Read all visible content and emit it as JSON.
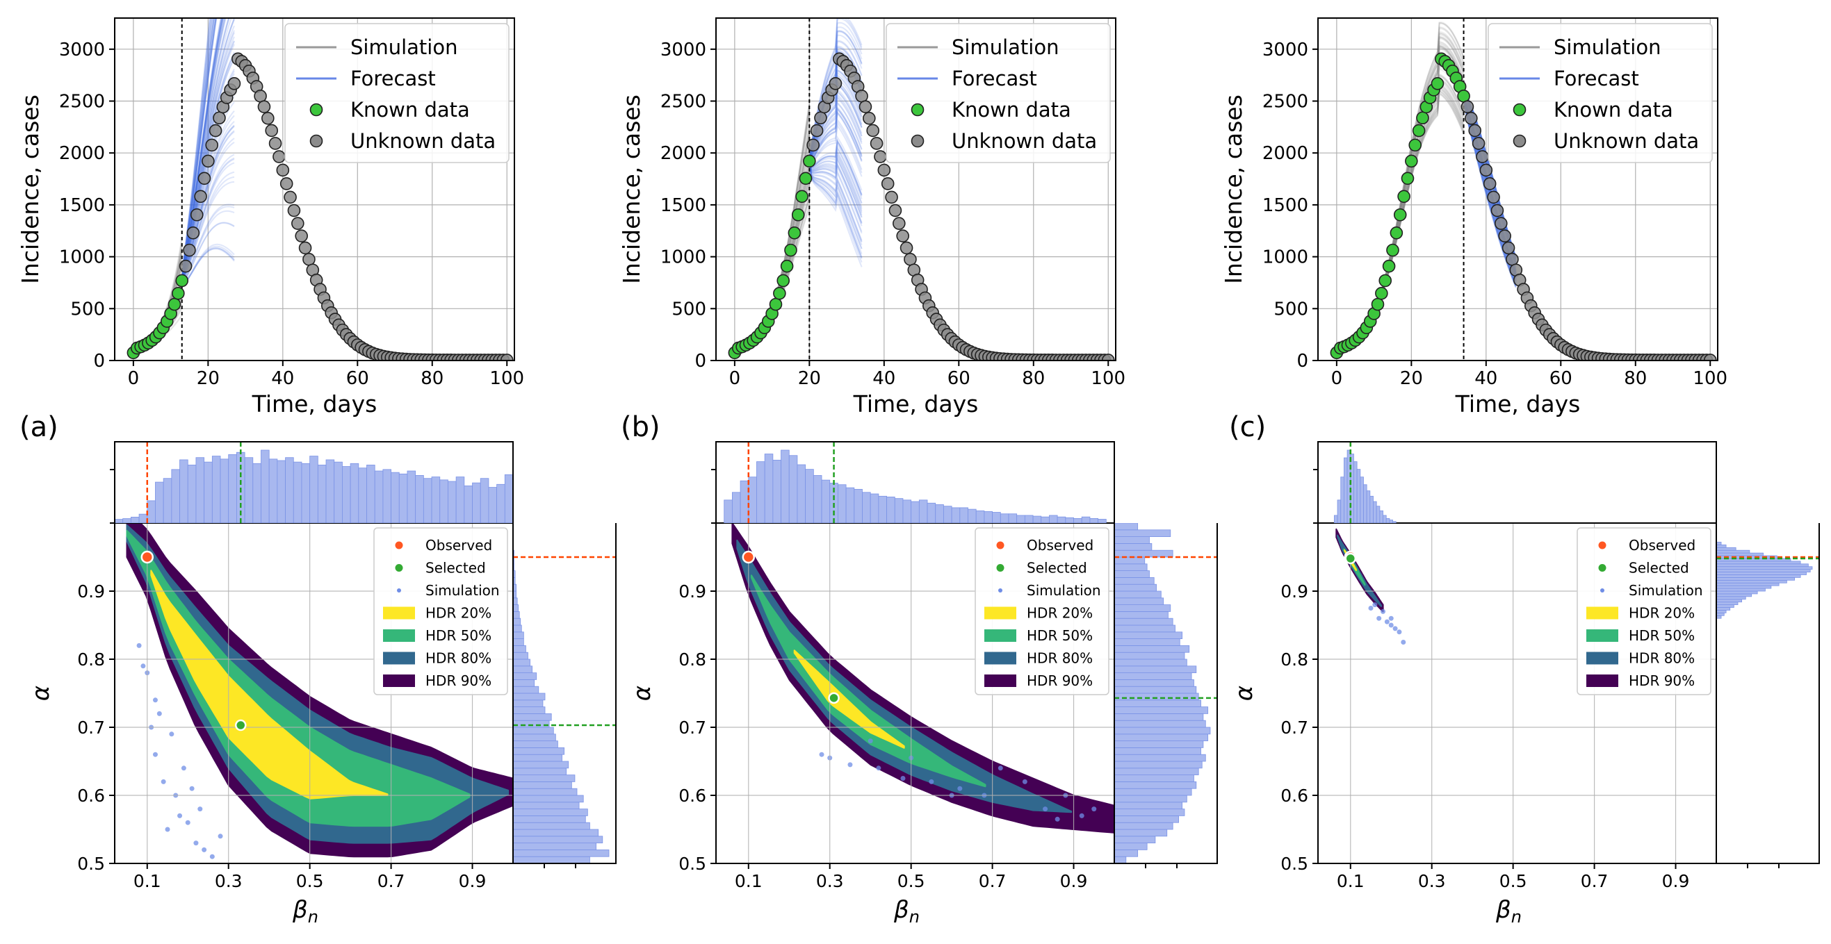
{
  "figure": {
    "panel_labels": [
      "(a)",
      "(b)",
      "(c)"
    ]
  },
  "chart_data": [
    {
      "panel": "(a)",
      "type": "line",
      "xlabel": "Time, days",
      "ylabel": "Incidence, cases",
      "xlim": [
        -5,
        102
      ],
      "ylim": [
        0,
        3300
      ],
      "xticks": [
        0,
        20,
        40,
        60,
        80,
        100
      ],
      "yticks": [
        0,
        500,
        1000,
        1500,
        2000,
        2500,
        3000
      ],
      "grid": true,
      "legend_position": "top-right",
      "legend": [
        "Simulation",
        "Forecast",
        "Known data",
        "Unknown data"
      ],
      "split_day": 13,
      "forecast_end_day": 27,
      "forecast_band": {
        "lo_factor": 0.35,
        "hi_factor": 1.9
      },
      "simulation_band": {
        "lo_factor": 0.55,
        "hi_factor": 1.55
      },
      "colors": {
        "simulation": "#808080",
        "forecast": "#4169e1",
        "known": "#3cc63c",
        "unknown": "#8c8c8c"
      }
    },
    {
      "panel": "(b)",
      "type": "line",
      "xlabel": "Time, days",
      "ylabel": "Incidence, cases",
      "xlim": [
        -5,
        102
      ],
      "ylim": [
        0,
        3300
      ],
      "xticks": [
        0,
        20,
        40,
        60,
        80,
        100
      ],
      "yticks": [
        0,
        500,
        1000,
        1500,
        2000,
        2500,
        3000
      ],
      "grid": true,
      "legend_position": "top-right",
      "legend": [
        "Simulation",
        "Forecast",
        "Known data",
        "Unknown data"
      ],
      "split_day": 20,
      "forecast_end_day": 34,
      "forecast_band": {
        "lo_factor": 0.35,
        "hi_factor": 1.2
      },
      "simulation_band": {
        "lo_factor": 0.75,
        "hi_factor": 1.3
      },
      "colors": {
        "simulation": "#808080",
        "forecast": "#4169e1",
        "known": "#3cc63c",
        "unknown": "#8c8c8c"
      }
    },
    {
      "panel": "(c)",
      "type": "line",
      "xlabel": "Time, days",
      "ylabel": "Incidence, cases",
      "xlim": [
        -5,
        102
      ],
      "ylim": [
        0,
        3300
      ],
      "xticks": [
        0,
        20,
        40,
        60,
        80,
        100
      ],
      "yticks": [
        0,
        500,
        1000,
        1500,
        2000,
        2500,
        3000
      ],
      "grid": true,
      "legend_position": "top-right",
      "legend": [
        "Simulation",
        "Forecast",
        "Known data",
        "Unknown data"
      ],
      "split_day": 34,
      "forecast_end_day": 48,
      "forecast_band": {
        "lo_factor": 0.8,
        "hi_factor": 1.15
      },
      "simulation_band": {
        "lo_factor": 0.85,
        "hi_factor": 1.15
      },
      "colors": {
        "simulation": "#808080",
        "forecast": "#4169e1",
        "known": "#3cc63c",
        "unknown": "#8c8c8c"
      }
    },
    {
      "panel": "(a)",
      "type": "heatmap",
      "xlabel": "βn",
      "ylabel": "α",
      "xlim": [
        0.02,
        1.0
      ],
      "ylim": [
        0.5,
        1.0
      ],
      "xticks": [
        0.1,
        0.3,
        0.5,
        0.7,
        0.9
      ],
      "yticks": [
        0.5,
        0.6,
        0.7,
        0.8,
        0.9
      ],
      "grid": true,
      "legend_position": "top-right",
      "legend": [
        "Observed",
        "Selected",
        "Simulation",
        "HDR 20%",
        "HDR 50%",
        "HDR 80%",
        "HDR 90%"
      ],
      "observed": [
        0.1,
        0.95
      ],
      "selected": [
        0.33,
        0.703
      ],
      "hdr_centerline": [
        [
          0.05,
          0.985
        ],
        [
          0.1,
          0.94
        ],
        [
          0.15,
          0.87
        ],
        [
          0.22,
          0.8
        ],
        [
          0.3,
          0.73
        ],
        [
          0.4,
          0.67
        ],
        [
          0.5,
          0.63
        ],
        [
          0.6,
          0.61
        ],
        [
          0.7,
          0.6
        ],
        [
          0.8,
          0.595
        ],
        [
          0.9,
          0.6
        ],
        [
          1.0,
          0.605
        ]
      ],
      "hdr_half_widths": [
        [
          0.035,
          0.012,
          0.004,
          0.0
        ],
        [
          0.05,
          0.03,
          0.018,
          0.0
        ],
        [
          0.075,
          0.055,
          0.04,
          0.018
        ],
        [
          0.1,
          0.075,
          0.055,
          0.035
        ],
        [
          0.115,
          0.09,
          0.07,
          0.045
        ],
        [
          0.12,
          0.1,
          0.075,
          0.045
        ],
        [
          0.115,
          0.095,
          0.07,
          0.035
        ],
        [
          0.1,
          0.08,
          0.055,
          0.01
        ],
        [
          0.09,
          0.07,
          0.045,
          0.0
        ],
        [
          0.075,
          0.06,
          0.03,
          0.0
        ],
        [
          0.04,
          0.025,
          0.0,
          0.0
        ],
        [
          0.02,
          0.0,
          0.0,
          0.0
        ]
      ],
      "simulation_points": [
        [
          0.08,
          0.82
        ],
        [
          0.09,
          0.79
        ],
        [
          0.1,
          0.78
        ],
        [
          0.11,
          0.7
        ],
        [
          0.12,
          0.66
        ],
        [
          0.13,
          0.72
        ],
        [
          0.14,
          0.62
        ],
        [
          0.16,
          0.69
        ],
        [
          0.17,
          0.6
        ],
        [
          0.18,
          0.57
        ],
        [
          0.15,
          0.55
        ],
        [
          0.2,
          0.56
        ],
        [
          0.22,
          0.53
        ],
        [
          0.24,
          0.52
        ],
        [
          0.26,
          0.51
        ],
        [
          0.28,
          0.54
        ],
        [
          0.19,
          0.64
        ],
        [
          0.21,
          0.61
        ],
        [
          0.12,
          0.74
        ],
        [
          0.23,
          0.58
        ]
      ],
      "marginal_top": {
        "bin_start": 0.02,
        "bin_width": 0.02,
        "counts": [
          0.05,
          0.06,
          0.08,
          0.12,
          0.3,
          0.55,
          0.6,
          0.72,
          0.85,
          0.78,
          0.88,
          0.82,
          0.9,
          0.86,
          0.92,
          0.95,
          0.88,
          0.8,
          0.98,
          0.86,
          0.84,
          0.88,
          0.82,
          0.8,
          0.9,
          0.78,
          0.85,
          0.82,
          0.76,
          0.8,
          0.74,
          0.78,
          0.7,
          0.72,
          0.68,
          0.66,
          0.7,
          0.64,
          0.6,
          0.62,
          0.58,
          0.56,
          0.62,
          0.5,
          0.54,
          0.6,
          0.48,
          0.52,
          0.65
        ]
      },
      "marginal_right": {
        "bin_start": 0.5,
        "bin_width": 0.01,
        "counts": [
          0.72,
          0.9,
          0.78,
          0.84,
          0.8,
          0.72,
          0.68,
          0.7,
          0.62,
          0.66,
          0.6,
          0.55,
          0.58,
          0.5,
          0.52,
          0.46,
          0.48,
          0.42,
          0.4,
          0.38,
          0.34,
          0.36,
          0.3,
          0.28,
          0.3,
          0.24,
          0.2,
          0.22,
          0.18,
          0.16,
          0.14,
          0.12,
          0.1,
          0.1,
          0.08,
          0.07,
          0.06,
          0.05,
          0.04,
          0.03,
          0.03,
          0.02,
          0.02,
          0.01,
          0.01,
          0.01,
          0.0,
          0.0,
          0.0,
          0.0
        ]
      }
    },
    {
      "panel": "(b)",
      "type": "heatmap",
      "xlabel": "βn",
      "ylabel": "α",
      "xlim": [
        0.02,
        1.0
      ],
      "ylim": [
        0.5,
        1.0
      ],
      "xticks": [
        0.1,
        0.3,
        0.5,
        0.7,
        0.9
      ],
      "yticks": [
        0.5,
        0.6,
        0.7,
        0.8,
        0.9
      ],
      "grid": true,
      "legend_position": "top-right",
      "legend": [
        "Observed",
        "Selected",
        "Simulation",
        "HDR 20%",
        "HDR 50%",
        "HDR 80%",
        "HDR 90%"
      ],
      "observed": [
        0.1,
        0.95
      ],
      "selected": [
        0.31,
        0.743
      ],
      "hdr_centerline": [
        [
          0.06,
          0.985
        ],
        [
          0.1,
          0.93
        ],
        [
          0.15,
          0.87
        ],
        [
          0.2,
          0.82
        ],
        [
          0.3,
          0.75
        ],
        [
          0.4,
          0.7
        ],
        [
          0.5,
          0.665
        ],
        [
          0.6,
          0.635
        ],
        [
          0.7,
          0.61
        ],
        [
          0.8,
          0.59
        ],
        [
          0.9,
          0.575
        ],
        [
          1.0,
          0.565
        ]
      ],
      "hdr_half_widths": [
        [
          0.015,
          0.0,
          0.0,
          0.0
        ],
        [
          0.035,
          0.02,
          0.0,
          0.0
        ],
        [
          0.045,
          0.03,
          0.012,
          0.0
        ],
        [
          0.05,
          0.035,
          0.02,
          0.0
        ],
        [
          0.055,
          0.04,
          0.028,
          0.015
        ],
        [
          0.055,
          0.04,
          0.025,
          0.008
        ],
        [
          0.05,
          0.035,
          0.018,
          0.0
        ],
        [
          0.045,
          0.028,
          0.008,
          0.0
        ],
        [
          0.04,
          0.02,
          0.0,
          0.0
        ],
        [
          0.035,
          0.012,
          0.0,
          0.0
        ],
        [
          0.025,
          0.0,
          0.0,
          0.0
        ],
        [
          0.02,
          0.0,
          0.0,
          0.0
        ]
      ],
      "simulation_points": [
        [
          0.28,
          0.66
        ],
        [
          0.3,
          0.655
        ],
        [
          0.35,
          0.645
        ],
        [
          0.42,
          0.64
        ],
        [
          0.48,
          0.625
        ],
        [
          0.55,
          0.62
        ],
        [
          0.62,
          0.61
        ],
        [
          0.68,
          0.6
        ],
        [
          0.72,
          0.64
        ],
        [
          0.78,
          0.62
        ],
        [
          0.83,
          0.58
        ],
        [
          0.88,
          0.6
        ],
        [
          0.92,
          0.57
        ],
        [
          0.95,
          0.58
        ],
        [
          0.86,
          0.565
        ],
        [
          0.4,
          0.68
        ],
        [
          0.5,
          0.655
        ],
        [
          0.6,
          0.6
        ]
      ],
      "marginal_top": {
        "bin_start": 0.04,
        "bin_width": 0.02,
        "counts": [
          0.3,
          0.4,
          0.55,
          0.6,
          0.8,
          0.9,
          0.82,
          0.95,
          0.88,
          0.76,
          0.7,
          0.62,
          0.56,
          0.52,
          0.5,
          0.46,
          0.44,
          0.4,
          0.38,
          0.35,
          0.34,
          0.32,
          0.3,
          0.28,
          0.3,
          0.26,
          0.24,
          0.22,
          0.2,
          0.2,
          0.18,
          0.16,
          0.15,
          0.14,
          0.12,
          0.12,
          0.1,
          0.1,
          0.09,
          0.08,
          0.1,
          0.08,
          0.07,
          0.06,
          0.08,
          0.06,
          0.05
        ]
      },
      "marginal_right": {
        "bin_start": 0.5,
        "bin_width": 0.01,
        "counts": [
          0.1,
          0.2,
          0.28,
          0.35,
          0.45,
          0.5,
          0.55,
          0.6,
          0.58,
          0.62,
          0.66,
          0.7,
          0.68,
          0.72,
          0.75,
          0.78,
          0.74,
          0.76,
          0.8,
          0.82,
          0.78,
          0.76,
          0.8,
          0.74,
          0.72,
          0.7,
          0.68,
          0.66,
          0.7,
          0.62,
          0.6,
          0.64,
          0.56,
          0.58,
          0.52,
          0.5,
          0.46,
          0.48,
          0.42,
          0.4,
          0.36,
          0.34,
          0.3,
          0.28,
          0.26,
          0.5,
          0.32,
          0.3,
          0.48,
          0.2
        ]
      }
    },
    {
      "panel": "(c)",
      "type": "heatmap",
      "xlabel": "βn",
      "ylabel": "α",
      "xlim": [
        0.02,
        1.0
      ],
      "ylim": [
        0.5,
        1.0
      ],
      "xticks": [
        0.1,
        0.3,
        0.5,
        0.7,
        0.9
      ],
      "yticks": [
        0.5,
        0.6,
        0.7,
        0.8,
        0.9
      ],
      "grid": true,
      "legend_position": "top-right",
      "legend": [
        "Observed",
        "Selected",
        "Simulation",
        "HDR 20%",
        "HDR 50%",
        "HDR 80%",
        "HDR 90%"
      ],
      "observed": [
        0.1,
        0.95
      ],
      "selected": [
        0.1,
        0.948
      ],
      "hdr_centerline": [
        [
          0.065,
          0.985
        ],
        [
          0.08,
          0.965
        ],
        [
          0.1,
          0.945
        ],
        [
          0.12,
          0.925
        ],
        [
          0.14,
          0.905
        ],
        [
          0.16,
          0.89
        ],
        [
          0.18,
          0.875
        ]
      ],
      "hdr_half_widths": [
        [
          0.006,
          0.0,
          0.0,
          0.0
        ],
        [
          0.008,
          0.005,
          0.0,
          0.0
        ],
        [
          0.01,
          0.007,
          0.004,
          0.002
        ],
        [
          0.01,
          0.006,
          0.003,
          0.0
        ],
        [
          0.009,
          0.005,
          0.0,
          0.0
        ],
        [
          0.008,
          0.003,
          0.0,
          0.0
        ],
        [
          0.005,
          0.0,
          0.0,
          0.0
        ]
      ],
      "simulation_points": [
        [
          0.17,
          0.86
        ],
        [
          0.19,
          0.855
        ],
        [
          0.2,
          0.85
        ],
        [
          0.21,
          0.845
        ],
        [
          0.22,
          0.84
        ],
        [
          0.23,
          0.825
        ],
        [
          0.18,
          0.87
        ],
        [
          0.2,
          0.86
        ],
        [
          0.16,
          0.88
        ],
        [
          0.15,
          0.875
        ]
      ],
      "marginal_top": {
        "bin_start": 0.06,
        "bin_width": 0.008,
        "counts": [
          0.1,
          0.3,
          0.6,
          0.85,
          0.95,
          0.9,
          0.8,
          0.7,
          0.6,
          0.5,
          0.42,
          0.35,
          0.28,
          0.22,
          0.16,
          0.1,
          0.06,
          0.04,
          0.02
        ]
      },
      "marginal_right": {
        "bin_start": 0.86,
        "bin_width": 0.004,
        "counts": [
          0.05,
          0.08,
          0.1,
          0.14,
          0.18,
          0.22,
          0.26,
          0.3,
          0.36,
          0.42,
          0.5,
          0.56,
          0.64,
          0.72,
          0.8,
          0.86,
          0.92,
          0.96,
          0.98,
          0.94,
          0.86,
          0.76,
          0.62,
          0.48,
          0.34,
          0.2,
          0.1,
          0.05
        ]
      }
    }
  ],
  "colors": {
    "observed": "#ff5722",
    "selected": "#33aa33",
    "simulation_points": "#6f8de6",
    "hdr_20": "#fde725",
    "hdr_50": "#35b779",
    "hdr_80": "#31688e",
    "hdr_90": "#440154",
    "marginal_fill": "#a8b8ef",
    "marginal_edge": "#7b93e6",
    "observed_line": "#ff4500",
    "selected_line": "#22a022"
  }
}
